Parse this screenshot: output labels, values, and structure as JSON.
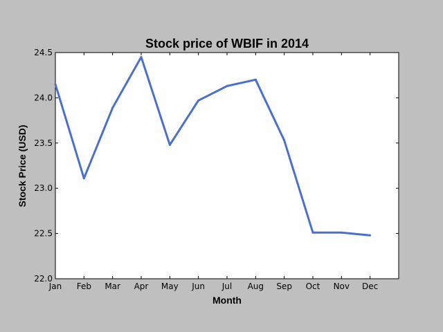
{
  "chart_data": {
    "type": "line",
    "title": "Stock price of WBIF in 2014",
    "xlabel": "Month",
    "ylabel": "Stock Price (USD)",
    "categories": [
      "Jan",
      "Feb",
      "Mar",
      "Apr",
      "May",
      "Jun",
      "Jul",
      "Aug",
      "Sep",
      "Oct",
      "Nov",
      "Dec"
    ],
    "series": [
      {
        "values": [
          24.15,
          23.11,
          23.89,
          24.45,
          23.48,
          23.97,
          24.13,
          24.2,
          23.53,
          22.51,
          22.51,
          22.48
        ],
        "color": "#4a6fcf"
      }
    ],
    "ylim": [
      22.0,
      24.5
    ],
    "yticks": [
      "22.0",
      "22.5",
      "23.0",
      "23.5",
      "24.0",
      "24.5"
    ],
    "grid": false,
    "background": "#bfbfbf",
    "plot_background": "#ffffff"
  }
}
